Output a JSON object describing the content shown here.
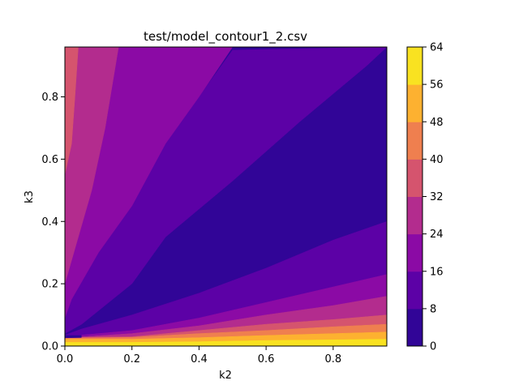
{
  "chart_data": {
    "type": "contourf",
    "title": "test/model_contour1_2.csv",
    "xlabel": "k2",
    "ylabel": "k3",
    "xlim": [
      0,
      0.96
    ],
    "ylim": [
      0,
      0.96
    ],
    "x_ticks": [
      "0.0",
      "0.2",
      "0.4",
      "0.6",
      "0.8"
    ],
    "x_tick_values": [
      0.0,
      0.2,
      0.4,
      0.6,
      0.8
    ],
    "y_ticks": [
      "0.0",
      "0.2",
      "0.4",
      "0.6",
      "0.8"
    ],
    "y_tick_values": [
      0.0,
      0.2,
      0.4,
      0.6,
      0.8
    ],
    "colorbar": {
      "levels": [
        0,
        8,
        16,
        24,
        32,
        40,
        48,
        56,
        64
      ],
      "tick_labels": [
        "0",
        "8",
        "16",
        "24",
        "32",
        "40",
        "48",
        "56",
        "64"
      ],
      "colors": [
        "#310597",
        "#5c01a6",
        "#8b0aa5",
        "#b32c8e",
        "#d5546e",
        "#ef7f4f",
        "#fdb130",
        "#f9e221"
      ]
    },
    "bands": [
      {
        "level_index": 0,
        "range": [
          0,
          8
        ],
        "polygon": [
          [
            0.0,
            0.04
          ],
          [
            0.05,
            0.07
          ],
          [
            0.2,
            0.2
          ],
          [
            0.3,
            0.35
          ],
          [
            0.5,
            0.53
          ],
          [
            0.7,
            0.72
          ],
          [
            0.9,
            0.9
          ],
          [
            0.96,
            0.96
          ],
          [
            0.96,
            0.4
          ],
          [
            0.8,
            0.34
          ],
          [
            0.6,
            0.25
          ],
          [
            0.4,
            0.17
          ],
          [
            0.2,
            0.1
          ],
          [
            0.05,
            0.055
          ],
          [
            0.0,
            0.04
          ]
        ]
      },
      {
        "level_index": 1,
        "range": [
          8,
          16
        ],
        "polygon": [
          [
            0.0,
            0.09
          ],
          [
            0.02,
            0.15
          ],
          [
            0.1,
            0.3
          ],
          [
            0.2,
            0.45
          ],
          [
            0.3,
            0.65
          ],
          [
            0.4,
            0.8
          ],
          [
            0.5,
            0.95
          ],
          [
            0.96,
            0.96
          ],
          [
            0.96,
            0.96
          ],
          [
            0.9,
            0.9
          ],
          [
            0.7,
            0.72
          ],
          [
            0.5,
            0.53
          ],
          [
            0.3,
            0.35
          ],
          [
            0.2,
            0.2
          ],
          [
            0.05,
            0.07
          ],
          [
            0.0,
            0.04
          ]
        ]
      },
      {
        "level_index": 1,
        "range": [
          8,
          16
        ],
        "polygon": [
          [
            0.0,
            0.035
          ],
          [
            0.05,
            0.055
          ],
          [
            0.2,
            0.1
          ],
          [
            0.4,
            0.17
          ],
          [
            0.6,
            0.25
          ],
          [
            0.8,
            0.34
          ],
          [
            0.96,
            0.4
          ],
          [
            0.96,
            0.23
          ],
          [
            0.8,
            0.19
          ],
          [
            0.6,
            0.14
          ],
          [
            0.4,
            0.09
          ],
          [
            0.2,
            0.05
          ],
          [
            0.05,
            0.035
          ]
        ]
      },
      {
        "level_index": 2,
        "range": [
          16,
          24
        ],
        "polygon": [
          [
            0.0,
            0.2
          ],
          [
            0.04,
            0.35
          ],
          [
            0.08,
            0.5
          ],
          [
            0.12,
            0.7
          ],
          [
            0.16,
            0.96
          ],
          [
            0.5,
            0.96
          ],
          [
            0.4,
            0.8
          ],
          [
            0.3,
            0.65
          ],
          [
            0.2,
            0.45
          ],
          [
            0.1,
            0.3
          ],
          [
            0.02,
            0.15
          ],
          [
            0.0,
            0.09
          ]
        ]
      },
      {
        "level_index": 2,
        "range": [
          16,
          24
        ],
        "polygon": [
          [
            0.05,
            0.035
          ],
          [
            0.2,
            0.05
          ],
          [
            0.4,
            0.09
          ],
          [
            0.6,
            0.14
          ],
          [
            0.8,
            0.19
          ],
          [
            0.96,
            0.23
          ],
          [
            0.96,
            0.16
          ],
          [
            0.8,
            0.13
          ],
          [
            0.6,
            0.1
          ],
          [
            0.4,
            0.065
          ],
          [
            0.2,
            0.04
          ],
          [
            0.05,
            0.032
          ]
        ]
      },
      {
        "level_index": 3,
        "range": [
          24,
          32
        ],
        "polygon": [
          [
            0.0,
            0.55
          ],
          [
            0.02,
            0.65
          ],
          [
            0.03,
            0.8
          ],
          [
            0.04,
            0.96
          ],
          [
            0.16,
            0.96
          ],
          [
            0.12,
            0.7
          ],
          [
            0.08,
            0.5
          ],
          [
            0.04,
            0.35
          ],
          [
            0.0,
            0.2
          ]
        ]
      },
      {
        "level_index": 3,
        "range": [
          24,
          32
        ],
        "polygon": [
          [
            0.05,
            0.03
          ],
          [
            0.2,
            0.04
          ],
          [
            0.4,
            0.065
          ],
          [
            0.6,
            0.1
          ],
          [
            0.8,
            0.13
          ],
          [
            0.96,
            0.16
          ],
          [
            0.96,
            0.1
          ],
          [
            0.8,
            0.085
          ],
          [
            0.6,
            0.07
          ],
          [
            0.4,
            0.05
          ],
          [
            0.2,
            0.03
          ],
          [
            0.05,
            0.028
          ]
        ]
      },
      {
        "level_index": 4,
        "range": [
          32,
          40
        ],
        "polygon": [
          [
            0.0,
            0.96
          ],
          [
            0.04,
            0.96
          ],
          [
            0.03,
            0.8
          ],
          [
            0.02,
            0.65
          ],
          [
            0.0,
            0.55
          ]
        ]
      },
      {
        "level_index": 4,
        "range": [
          32,
          40
        ],
        "polygon": [
          [
            0.05,
            0.026
          ],
          [
            0.2,
            0.028
          ],
          [
            0.4,
            0.04
          ],
          [
            0.6,
            0.05
          ],
          [
            0.8,
            0.062
          ],
          [
            0.96,
            0.07
          ],
          [
            0.96,
            0.1
          ],
          [
            0.8,
            0.085
          ],
          [
            0.6,
            0.07
          ],
          [
            0.4,
            0.05
          ],
          [
            0.2,
            0.03
          ],
          [
            0.05,
            0.028
          ]
        ]
      },
      {
        "level_index": 5,
        "range": [
          40,
          48
        ],
        "polygon": [
          [
            0.0,
            0.022
          ],
          [
            0.2,
            0.022
          ],
          [
            0.4,
            0.027
          ],
          [
            0.6,
            0.034
          ],
          [
            0.8,
            0.04
          ],
          [
            0.96,
            0.045
          ],
          [
            0.96,
            0.07
          ],
          [
            0.8,
            0.062
          ],
          [
            0.6,
            0.05
          ],
          [
            0.4,
            0.04
          ],
          [
            0.2,
            0.028
          ],
          [
            0.05,
            0.026
          ],
          [
            0.0,
            0.025
          ]
        ]
      },
      {
        "level_index": 6,
        "range": [
          48,
          56
        ],
        "polygon": [
          [
            0.0,
            0.012
          ],
          [
            0.2,
            0.012
          ],
          [
            0.4,
            0.014
          ],
          [
            0.6,
            0.018
          ],
          [
            0.8,
            0.02
          ],
          [
            0.96,
            0.022
          ],
          [
            0.96,
            0.045
          ],
          [
            0.8,
            0.04
          ],
          [
            0.6,
            0.034
          ],
          [
            0.4,
            0.027
          ],
          [
            0.2,
            0.022
          ],
          [
            0.0,
            0.022
          ]
        ]
      },
      {
        "level_index": 7,
        "range": [
          56,
          64
        ],
        "polygon": [
          [
            0.0,
            0.0
          ],
          [
            0.96,
            0.0
          ],
          [
            0.96,
            0.022
          ],
          [
            0.8,
            0.02
          ],
          [
            0.6,
            0.018
          ],
          [
            0.4,
            0.014
          ],
          [
            0.2,
            0.012
          ],
          [
            0.0,
            0.012
          ]
        ]
      }
    ]
  }
}
